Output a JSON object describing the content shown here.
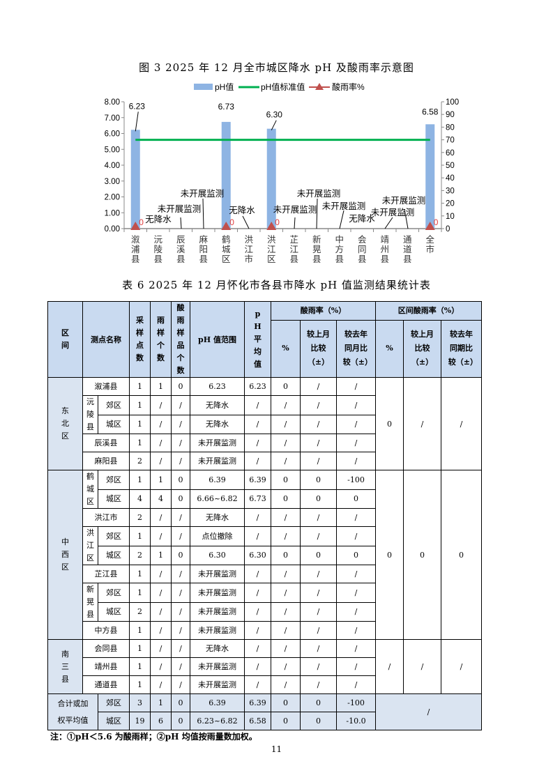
{
  "chart_data": {
    "type": "bar",
    "title": "图 3   2025 年 12 月全市城区降水 pH 及酸雨率示意图",
    "categories": [
      "溆浦县",
      "沅陵县",
      "辰溪县",
      "麻阳县",
      "鹤城区",
      "洪江市",
      "洪江区",
      "芷江县",
      "新晃县",
      "中方县",
      "会同县",
      "靖州县",
      "通道县",
      "全市"
    ],
    "series": [
      {
        "name": "pH值",
        "type": "bar",
        "axis": "left",
        "color": "#8eb4e3",
        "values": [
          6.23,
          null,
          null,
          null,
          6.73,
          null,
          6.3,
          null,
          null,
          null,
          null,
          null,
          null,
          6.58
        ]
      },
      {
        "name": "pH值标准值",
        "type": "line",
        "axis": "left",
        "color": "#00b050",
        "values": [
          5.6,
          5.6,
          5.6,
          5.6,
          5.6,
          5.6,
          5.6,
          5.6,
          5.6,
          5.6,
          5.6,
          5.6,
          5.6,
          5.6
        ]
      },
      {
        "name": "酸雨率%",
        "type": "line-marker",
        "axis": "right",
        "color": "#c0504d",
        "values": [
          0,
          null,
          null,
          null,
          0,
          null,
          0,
          null,
          null,
          null,
          null,
          null,
          null,
          0
        ]
      }
    ],
    "value_labels": [
      "6.23",
      "",
      "",
      "",
      "6.73",
      "",
      "6.30",
      "",
      "",
      "",
      "",
      "",
      "",
      "6.58"
    ],
    "rate_labels": [
      "0",
      "",
      "",
      "",
      "0",
      "",
      "0",
      "",
      "",
      "",
      "",
      "",
      "",
      "0"
    ],
    "annotations": [
      "",
      "无降水",
      "未开展监测",
      "未开展监测",
      "",
      "无降水",
      "",
      "未开展监测",
      "未开展监测",
      "未开展监测",
      "无降水",
      "未开展监测",
      "未开展监测",
      ""
    ],
    "ylim": [
      0,
      8
    ],
    "yticks": [
      "0.00",
      "1.00",
      "2.00",
      "3.00",
      "4.00",
      "5.00",
      "6.00",
      "7.00",
      "8.00"
    ],
    "y2lim": [
      0,
      100
    ],
    "y2ticks": [
      "0",
      "10",
      "20",
      "30",
      "40",
      "50",
      "60",
      "70",
      "80",
      "90",
      "100"
    ],
    "legend": "top",
    "grid": false,
    "xlabel": "",
    "ylabel": ""
  },
  "table": {
    "title": "表 6   2025 年 12 月怀化市各县市降水 pH 值监测结果统计表",
    "headers": {
      "region": "区间",
      "site": "测点名称",
      "sample_points": "采样点数",
      "rain_samples": "雨样个数",
      "acid_samples": "酸雨样品个数",
      "ph_range": "pH 值范围",
      "ph_avg": "pH 平均值",
      "acid_rate": "酸雨率（%）",
      "region_rate": "区间酸雨率（%）",
      "pct": "%",
      "vs_last_month": "较上月比较（±）",
      "vs_last_year": "较去年同月比较（±）",
      "r_pct": "%",
      "r_vs_last_month": "较上月比较（±）",
      "r_vs_last_year": "较去年同期比较（±）"
    },
    "groups": [
      {
        "region": "东北区",
        "region_rate": [
          "0",
          "/",
          "/"
        ],
        "rows": [
          {
            "site": "溆浦县",
            "sub": "",
            "cells": [
              "1",
              "1",
              "0",
              "6.23",
              "6.23",
              "0",
              "/",
              "/"
            ]
          },
          {
            "site": "沅陵县",
            "sub": "郊区",
            "cells": [
              "1",
              "/",
              "/",
              "无降水",
              "/",
              "/",
              "/",
              "/"
            ]
          },
          {
            "site": "",
            "sub": "城区",
            "cells": [
              "1",
              "/",
              "/",
              "无降水",
              "/",
              "/",
              "/",
              "/"
            ]
          },
          {
            "site": "辰溪县",
            "sub": "",
            "cells": [
              "1",
              "/",
              "/",
              "未开展监测",
              "/",
              "/",
              "/",
              "/"
            ]
          },
          {
            "site": "麻阳县",
            "sub": "",
            "cells": [
              "2",
              "/",
              "/",
              "未开展监测",
              "/",
              "/",
              "/",
              "/"
            ]
          }
        ]
      },
      {
        "region": "中西区",
        "region_rate": [
          "0",
          "0",
          "0"
        ],
        "rows": [
          {
            "site": "鹤城区",
            "sub": "郊区",
            "cells": [
              "1",
              "1",
              "0",
              "6.39",
              "6.39",
              "0",
              "0",
              "-100"
            ]
          },
          {
            "site": "",
            "sub": "城区",
            "cells": [
              "4",
              "4",
              "0",
              "6.66~6.82",
              "6.73",
              "0",
              "0",
              "0"
            ]
          },
          {
            "site": "洪江市",
            "sub": "",
            "cells": [
              "2",
              "/",
              "/",
              "无降水",
              "/",
              "/",
              "/",
              "/"
            ]
          },
          {
            "site": "洪江区",
            "sub": "郊区",
            "cells": [
              "1",
              "/",
              "/",
              "点位撤除",
              "/",
              "/",
              "/",
              "/"
            ]
          },
          {
            "site": "",
            "sub": "城区",
            "cells": [
              "2",
              "1",
              "0",
              "6.30",
              "6.30",
              "0",
              "0",
              "0"
            ]
          },
          {
            "site": "芷江县",
            "sub": "",
            "cells": [
              "1",
              "/",
              "/",
              "未开展监测",
              "/",
              "/",
              "/",
              "/"
            ]
          },
          {
            "site": "新晃县",
            "sub": "郊区",
            "cells": [
              "1",
              "/",
              "/",
              "未开展监测",
              "/",
              "/",
              "/",
              "/"
            ]
          },
          {
            "site": "",
            "sub": "城区",
            "cells": [
              "2",
              "/",
              "/",
              "未开展监测",
              "/",
              "/",
              "/",
              "/"
            ]
          },
          {
            "site": "中方县",
            "sub": "",
            "cells": [
              "1",
              "/",
              "/",
              "未开展监测",
              "/",
              "/",
              "/",
              "/"
            ]
          }
        ]
      },
      {
        "region": "南三县",
        "region_rate": [
          "/",
          "/",
          "/"
        ],
        "rows": [
          {
            "site": "会同县",
            "sub": "",
            "cells": [
              "1",
              "/",
              "/",
              "无降水",
              "/",
              "/",
              "/",
              "/"
            ]
          },
          {
            "site": "靖州县",
            "sub": "",
            "cells": [
              "1",
              "/",
              "/",
              "未开展监测",
              "/",
              "/",
              "/",
              "/"
            ]
          },
          {
            "site": "通道县",
            "sub": "",
            "cells": [
              "1",
              "/",
              "/",
              "未开展监测",
              "/",
              "/",
              "/",
              "/"
            ]
          }
        ]
      }
    ],
    "total": {
      "label": "合计或加权平均值",
      "region_rate": "/",
      "rows": [
        {
          "sub": "郊区",
          "cells": [
            "3",
            "1",
            "0",
            "6.39",
            "6.39",
            "0",
            "0",
            "-100"
          ]
        },
        {
          "sub": "城区",
          "cells": [
            "19",
            "6",
            "0",
            "6.23~6.82",
            "6.58",
            "0",
            "0",
            "-10.0"
          ]
        }
      ]
    }
  },
  "note": "注：①pH＜5.6 为酸雨样；②pH 均值按雨量数加权。",
  "page_number": "11"
}
